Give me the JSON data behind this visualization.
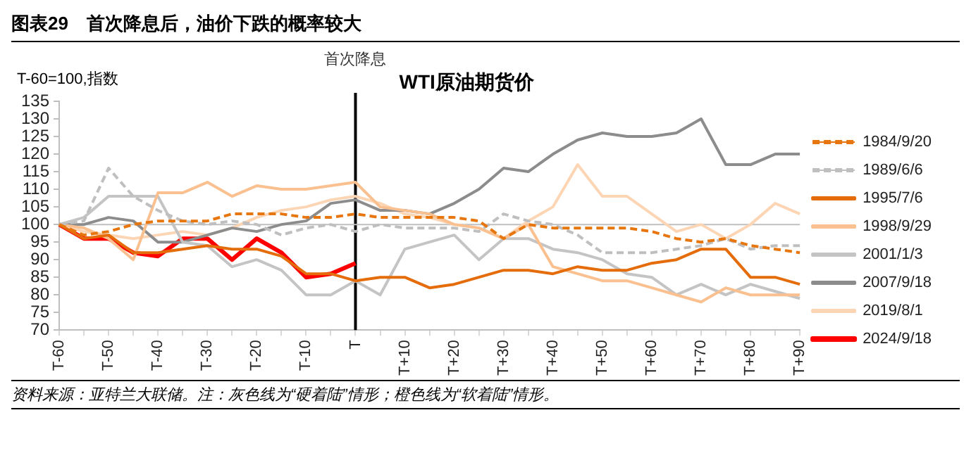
{
  "chart_data": {
    "type": "line",
    "title": "图表29　首次降息后，油价下跌的概率较大",
    "subtitle": "WTI原油期货价",
    "ylabel": "T-60=100,指数",
    "annotations": [
      "资料来源：亚特兰大联储。注：灰色线为“硬着陆”情形；橙色线为“软着陆”情形。"
    ],
    "categories": [
      "T-60",
      null,
      "T-50",
      null,
      "T-40",
      null,
      "T-30",
      null,
      "T-20",
      null,
      "T-10",
      null,
      "T",
      null,
      "T+10",
      null,
      "T+20",
      null,
      "T+30",
      null,
      "T+40",
      null,
      "T+50",
      null,
      "T+60",
      null,
      "T+70",
      null,
      "T+80",
      null,
      "T+90"
    ],
    "ylim": [
      70,
      135
    ],
    "yticks": [
      70,
      75,
      80,
      85,
      90,
      95,
      100,
      105,
      110,
      115,
      120,
      125,
      130,
      135
    ],
    "grid": false,
    "legend": "right",
    "marker": "none",
    "ref_lines": [
      {
        "axis": "x",
        "value": "T",
        "label": "首次降息",
        "color": "#000000"
      },
      {
        "axis": "y",
        "value": 100,
        "color": "#bfbfbf"
      }
    ],
    "series": [
      {
        "name": "1984/9/20",
        "color": "#e8760f",
        "line_style": "dashed",
        "values": [
          100,
          97,
          98,
          100,
          101,
          101,
          101,
          103,
          103,
          103,
          102,
          102,
          103,
          102,
          102,
          102,
          102,
          101,
          96,
          100,
          99,
          99,
          99,
          99,
          98,
          96,
          95,
          96,
          94,
          93,
          92
        ]
      },
      {
        "name": "1989/6/6",
        "color": "#bfbfbf",
        "line_style": "dashed",
        "values": [
          100,
          101,
          116,
          108,
          104,
          101,
          100,
          101,
          100,
          97,
          99,
          100,
          98,
          100,
          99,
          99,
          99,
          98,
          103,
          101,
          100,
          97,
          92,
          92,
          92,
          93,
          94,
          96,
          93,
          94,
          94
        ]
      },
      {
        "name": "1995/7/6",
        "color": "#e46c0a",
        "line_style": "solid",
        "values": [
          100,
          96,
          97,
          92,
          92,
          93,
          94,
          93,
          93,
          91,
          86,
          86,
          84,
          85,
          85,
          82,
          83,
          85,
          87,
          87,
          86,
          88,
          87,
          87,
          89,
          90,
          93,
          93,
          85,
          85,
          83
        ]
      },
      {
        "name": "1998/9/29",
        "color": "#fac090",
        "line_style": "solid",
        "values": [
          100,
          99,
          96,
          90,
          109,
          109,
          112,
          108,
          111,
          110,
          110,
          111,
          112,
          105,
          104,
          103,
          100,
          99,
          96,
          100,
          88,
          86,
          84,
          84,
          82,
          80,
          78,
          82,
          80,
          80,
          80
        ]
      },
      {
        "name": "2001/1/3",
        "color": "#c4c4c4",
        "line_style": "solid",
        "values": [
          100,
          102,
          108,
          108,
          108,
          95,
          94,
          88,
          90,
          87,
          80,
          80,
          84,
          80,
          93,
          95,
          97,
          90,
          96,
          96,
          93,
          92,
          90,
          86,
          85,
          80,
          83,
          80,
          83,
          81,
          79
        ]
      },
      {
        "name": "2007/9/18",
        "color": "#8c8c8c",
        "line_style": "solid",
        "values": [
          100,
          100,
          102,
          101,
          95,
          95,
          97,
          99,
          98,
          100,
          101,
          106,
          107,
          104,
          104,
          103,
          106,
          110,
          116,
          115,
          120,
          124,
          126,
          125,
          125,
          126,
          130,
          117,
          117,
          120,
          120
        ]
      },
      {
        "name": "2019/8/1",
        "color": "#fcd5b4",
        "line_style": "solid",
        "values": [
          100,
          98,
          97,
          96,
          97,
          98,
          97,
          99,
          102,
          104,
          105,
          107,
          108,
          106,
          103,
          102,
          100,
          99,
          96,
          101,
          105,
          117,
          108,
          108,
          103,
          98,
          100,
          96,
          100,
          106,
          103
        ]
      },
      {
        "name": "2024/9/18",
        "color": "#ff0000",
        "line_style": "solid",
        "values": [
          100,
          96,
          96,
          92,
          91,
          96,
          96,
          90,
          96,
          92,
          85,
          86,
          89,
          null,
          null,
          null,
          null,
          null,
          null,
          null,
          null,
          null,
          null,
          null,
          null,
          null,
          null,
          null,
          null,
          null,
          null
        ]
      }
    ]
  }
}
